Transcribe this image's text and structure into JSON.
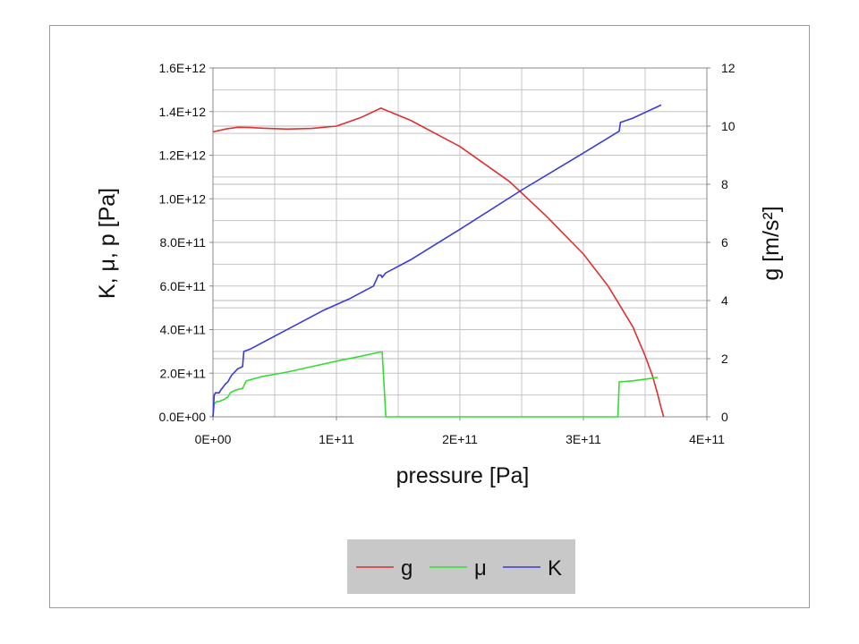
{
  "chart_data": {
    "type": "line",
    "xlabel": "pressure [Pa]",
    "ylabel_left": "K, μ, p [Pa]",
    "ylabel_right": "g [m/s²]",
    "x_ticks": [
      "0E+00",
      "1E+11",
      "2E+11",
      "3E+11",
      "4E+11"
    ],
    "x_tick_values": [
      0,
      100000000000,
      200000000000,
      300000000000,
      400000000000
    ],
    "xlim": [
      0,
      400000000000
    ],
    "y_left_ticks": [
      "0.0E+00",
      "2.0E+11",
      "4.0E+11",
      "6.0E+11",
      "8.0E+11",
      "1.0E+12",
      "1.2E+12",
      "1.4E+12",
      "1.6E+12"
    ],
    "y_left_tick_values": [
      0,
      200000000000,
      400000000000,
      600000000000,
      800000000000,
      1000000000000,
      1200000000000,
      1400000000000,
      1600000000000
    ],
    "ylim_left": [
      0,
      1600000000000
    ],
    "y_right_ticks": [
      "0",
      "2",
      "4",
      "6",
      "8",
      "10",
      "12"
    ],
    "y_right_tick_values": [
      0,
      2,
      4,
      6,
      8,
      10,
      12
    ],
    "ylim_right": [
      0,
      12
    ],
    "grid": true,
    "legend_position": "bottom",
    "series": [
      {
        "name": "g",
        "color": "#e03030",
        "axis": "right",
        "x": [
          0,
          10000000000,
          20000000000,
          30000000000,
          40000000000,
          60000000000,
          80000000000,
          100000000000,
          120000000000,
          136000000000,
          160000000000,
          200000000000,
          240000000000,
          270000000000,
          300000000000,
          320000000000,
          340000000000,
          350000000000,
          356000000000,
          360000000000,
          363000000000,
          365000000000
        ],
        "y": [
          9.8,
          9.9,
          9.96,
          9.95,
          9.93,
          9.9,
          9.92,
          10.0,
          10.3,
          10.62,
          10.2,
          9.3,
          8.1,
          6.9,
          5.6,
          4.5,
          3.1,
          2.1,
          1.4,
          0.8,
          0.3,
          0
        ]
      },
      {
        "name": "μ",
        "color": "#33dd33",
        "axis": "left",
        "x": [
          0,
          1000000000,
          3000000000,
          5000000000,
          9000000000,
          12000000000,
          14000000000,
          17000000000,
          20000000000,
          24000000000,
          27000000000,
          40000000000,
          60000000000,
          80000000000,
          100000000000,
          120000000000,
          136000000000,
          137000000000,
          140000000000,
          200000000000,
          300000000000,
          328000000000,
          329000000000,
          340000000000,
          360000000000
        ],
        "y": [
          0,
          60000000000,
          70000000000,
          70000000000,
          80000000000,
          90000000000,
          110000000000,
          120000000000,
          125000000000,
          130000000000,
          165000000000,
          185000000000,
          205000000000,
          230000000000,
          255000000000,
          278000000000,
          298000000000,
          298000000000,
          0,
          0,
          0,
          0,
          160000000000,
          165000000000,
          180000000000
        ]
      },
      {
        "name": "K",
        "color": "#3a3ad6",
        "axis": "left",
        "x": [
          0,
          1000000000,
          2000000000,
          5000000000,
          6000000000,
          10000000000,
          12000000000,
          15000000000,
          20000000000,
          24000000000,
          25000000000,
          30000000000,
          50000000000,
          70000000000,
          90000000000,
          110000000000,
          130000000000,
          134000000000,
          136000000000,
          137000000000,
          140000000000,
          160000000000,
          200000000000,
          250000000000,
          300000000000,
          329000000000,
          330000000000,
          340000000000,
          363000000000
        ],
        "y": [
          0,
          100000000000,
          110000000000,
          110000000000,
          120000000000,
          150000000000,
          160000000000,
          190000000000,
          220000000000,
          230000000000,
          300000000000,
          310000000000,
          370000000000,
          430000000000,
          490000000000,
          540000000000,
          600000000000,
          650000000000,
          650000000000,
          640000000000,
          660000000000,
          720000000000,
          860000000000,
          1040000000000,
          1210000000000,
          1310000000000,
          1350000000000,
          1370000000000,
          1430000000000
        ]
      }
    ],
    "legend": [
      {
        "name": "g",
        "color": "#e03030"
      },
      {
        "name": "μ",
        "color": "#33dd33"
      },
      {
        "name": "K",
        "color": "#3a3ad6"
      }
    ]
  }
}
